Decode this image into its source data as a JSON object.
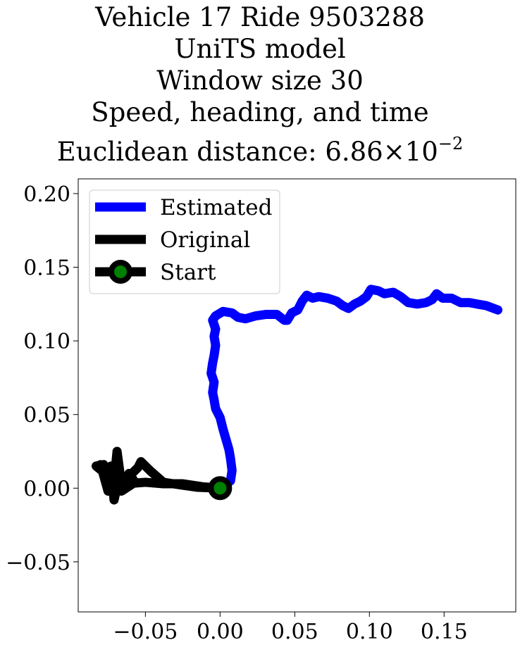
{
  "title_lines": [
    "Vehicle 17 Ride 9503288",
    "UniTS model",
    "Window size 30",
    "Speed, heading, and time"
  ],
  "title_metric_label": "Euclidean distance:",
  "title_metric_mantissa": "6.86",
  "title_metric_times": "×",
  "title_metric_base": "10",
  "title_metric_exponent": "−2",
  "chart_data": {
    "type": "line",
    "xlim": [
      -0.095,
      0.198
    ],
    "ylim": [
      -0.084,
      0.21
    ],
    "xticks": [
      -0.05,
      0.0,
      0.05,
      0.1,
      0.15
    ],
    "xtick_labels": [
      "−0.05",
      "0.00",
      "0.05",
      "0.10",
      "0.15"
    ],
    "yticks": [
      -0.05,
      0.0,
      0.05,
      0.1,
      0.15,
      0.2
    ],
    "ytick_labels": [
      "−0.05",
      "0.00",
      "0.05",
      "0.10",
      "0.15",
      "0.20"
    ],
    "grid": false,
    "legend_position": "top-left",
    "series": [
      {
        "name": "Estimated",
        "color": "#0000ff",
        "points": [
          [
            0.0,
            0.0
          ],
          [
            0.007,
            0.005
          ],
          [
            0.008,
            0.012
          ],
          [
            0.007,
            0.02
          ],
          [
            0.006,
            0.026
          ],
          [
            0.004,
            0.033
          ],
          [
            0.002,
            0.04
          ],
          [
            0.0,
            0.048
          ],
          [
            -0.003,
            0.054
          ],
          [
            -0.004,
            0.06
          ],
          [
            -0.005,
            0.065
          ],
          [
            -0.004,
            0.072
          ],
          [
            -0.006,
            0.078
          ],
          [
            -0.005,
            0.085
          ],
          [
            -0.004,
            0.09
          ],
          [
            -0.003,
            0.097
          ],
          [
            -0.004,
            0.103
          ],
          [
            -0.003,
            0.108
          ],
          [
            -0.005,
            0.114
          ],
          [
            -0.003,
            0.117
          ],
          [
            0.002,
            0.12
          ],
          [
            0.008,
            0.119
          ],
          [
            0.012,
            0.116
          ],
          [
            0.017,
            0.115
          ],
          [
            0.024,
            0.117
          ],
          [
            0.031,
            0.118
          ],
          [
            0.038,
            0.118
          ],
          [
            0.043,
            0.114
          ],
          [
            0.045,
            0.114
          ],
          [
            0.048,
            0.119
          ],
          [
            0.052,
            0.121
          ],
          [
            0.055,
            0.127
          ],
          [
            0.058,
            0.131
          ],
          [
            0.062,
            0.129
          ],
          [
            0.066,
            0.13
          ],
          [
            0.072,
            0.129
          ],
          [
            0.078,
            0.127
          ],
          [
            0.082,
            0.124
          ],
          [
            0.086,
            0.122
          ],
          [
            0.09,
            0.125
          ],
          [
            0.094,
            0.127
          ],
          [
            0.098,
            0.13
          ],
          [
            0.101,
            0.135
          ],
          [
            0.106,
            0.134
          ],
          [
            0.11,
            0.132
          ],
          [
            0.116,
            0.133
          ],
          [
            0.121,
            0.13
          ],
          [
            0.126,
            0.126
          ],
          [
            0.132,
            0.125
          ],
          [
            0.138,
            0.126
          ],
          [
            0.142,
            0.128
          ],
          [
            0.145,
            0.132
          ],
          [
            0.149,
            0.129
          ],
          [
            0.155,
            0.129
          ],
          [
            0.161,
            0.126
          ],
          [
            0.167,
            0.126
          ],
          [
            0.172,
            0.125
          ],
          [
            0.178,
            0.124
          ],
          [
            0.186,
            0.121
          ]
        ]
      },
      {
        "name": "Original",
        "color": "#000000",
        "points": [
          [
            0.0,
            0.0
          ],
          [
            -0.015,
            0.0006
          ],
          [
            -0.025,
            0.002
          ],
          [
            -0.038,
            0.004
          ],
          [
            -0.047,
            0.012
          ],
          [
            -0.053,
            0.018
          ],
          [
            -0.055,
            0.014
          ],
          [
            -0.064,
            0.005
          ],
          [
            -0.073,
            0.01
          ],
          [
            -0.08,
            0.016
          ],
          [
            -0.075,
            -0.002
          ],
          [
            -0.071,
            0.004
          ],
          [
            -0.069,
            0.025
          ],
          [
            -0.067,
            0.01
          ],
          [
            -0.071,
            -0.008
          ],
          [
            -0.073,
            0.015
          ],
          [
            -0.065,
            0.0
          ],
          [
            -0.061,
            0.01
          ],
          [
            -0.057,
            0.004
          ],
          [
            -0.066,
            -0.002
          ],
          [
            -0.078,
            0.016
          ],
          [
            -0.083,
            0.015
          ],
          [
            -0.072,
            0.006
          ],
          [
            -0.063,
            0.003
          ],
          [
            -0.05,
            0.004
          ],
          [
            -0.038,
            0.003
          ],
          [
            -0.025,
            0.003
          ],
          [
            -0.012,
            0.001
          ],
          [
            0.0,
            0.0
          ]
        ]
      }
    ],
    "start": {
      "label": "Start",
      "point": [
        0.0,
        0.0
      ],
      "marker_color": "#008000"
    }
  },
  "legend": {
    "items": [
      {
        "label": "Estimated",
        "color": "#0000ff",
        "marker": false
      },
      {
        "label": "Original",
        "color": "#000000",
        "marker": false
      },
      {
        "label": "Start",
        "color": "#000000",
        "marker": true,
        "marker_color": "#008000"
      }
    ]
  }
}
